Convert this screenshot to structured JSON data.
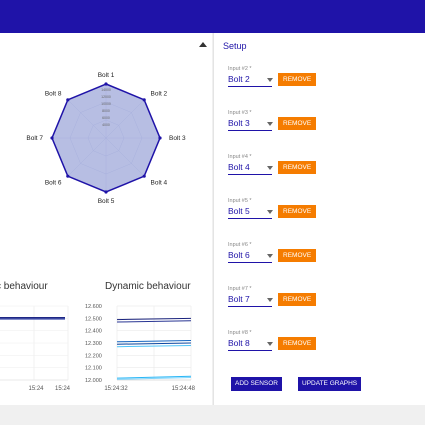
{
  "radar": {
    "labels": [
      "Bolt 1",
      "Bolt 2",
      "Bolt 3",
      "Bolt 4",
      "Bolt 5",
      "Bolt 6",
      "Bolt 7",
      "Bolt 8"
    ],
    "ticks": [
      "14000",
      "12000",
      "10000",
      "8000",
      "6000",
      "4000"
    ],
    "values": [
      1,
      1,
      1,
      1,
      1,
      1,
      1,
      1
    ],
    "fill": "#9fa8da",
    "stroke": "#1f13a8"
  },
  "charts": {
    "left": {
      "title": "c behaviour",
      "x_ticks": [
        "15:24",
        "15:24"
      ]
    },
    "right": {
      "title": "Dynamic behaviour",
      "y_ticks": [
        "12.600",
        "12.500",
        "12.400",
        "12.300",
        "12.200",
        "12.100",
        "12.000"
      ],
      "ylim": [
        12.0,
        12.6
      ],
      "x_ticks": [
        "15:24:32",
        "15:24:48"
      ],
      "series": [
        {
          "color": "#1a237e",
          "start": 12.49,
          "end": 12.5
        },
        {
          "color": "#283593",
          "start": 12.47,
          "end": 12.48
        },
        {
          "color": "#1565c0",
          "start": 12.31,
          "end": 12.32
        },
        {
          "color": "#0d47a1",
          "start": 12.29,
          "end": 12.3
        },
        {
          "color": "#4fc3f7",
          "start": 12.27,
          "end": 12.28
        },
        {
          "color": "#29b6f6",
          "start": 12.015,
          "end": 12.03
        },
        {
          "color": "#81d4fa",
          "start": 12.005,
          "end": 12.02
        }
      ]
    }
  },
  "setup": {
    "title": "Setup",
    "remove_label": "REMOVE",
    "inputs": [
      {
        "label": "Input #2 *",
        "value": "Bolt 2"
      },
      {
        "label": "Input #3 *",
        "value": "Bolt 3"
      },
      {
        "label": "Input #4 *",
        "value": "Bolt 4"
      },
      {
        "label": "Input #5 *",
        "value": "Bolt 5"
      },
      {
        "label": "Input #6 *",
        "value": "Bolt 6"
      },
      {
        "label": "Input #7 *",
        "value": "Bolt 7"
      },
      {
        "label": "Input #8 *",
        "value": "Bolt 8"
      }
    ],
    "add_sensor_label": "ADD SENSOR",
    "update_graphs_label": "UPDATE GRAPHS"
  },
  "icons": {
    "collapse": "triangle-up-icon",
    "dropdown": "triangle-down-icon"
  }
}
